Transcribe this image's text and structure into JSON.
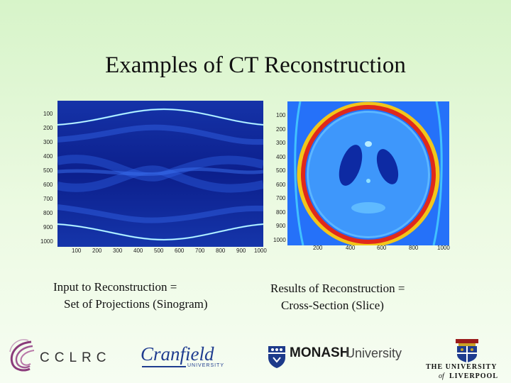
{
  "slide": {
    "title": "Examples of CT Reconstruction"
  },
  "sinogram": {
    "y_ticks": [
      "100",
      "200",
      "300",
      "400",
      "500",
      "600",
      "700",
      "800",
      "900",
      "1000"
    ],
    "x_ticks": [
      "100",
      "200",
      "300",
      "400",
      "500",
      "600",
      "700",
      "800",
      "900",
      "1000"
    ]
  },
  "slice": {
    "y_ticks": [
      "100",
      "200",
      "300",
      "400",
      "500",
      "600",
      "700",
      "800",
      "900",
      "1000"
    ],
    "x_ticks": [
      "200",
      "400",
      "600",
      "800",
      "1000"
    ]
  },
  "captions": {
    "left_line1": "Input to Reconstruction =",
    "left_line2": "Set of Projections (Sinogram)",
    "right_line1": "Results of Reconstruction =",
    "right_line2": "Cross-Section (Slice)"
  },
  "logos": {
    "cclrc": "CCLRC",
    "cranfield_name": "Cranfield",
    "cranfield_sub": "UNIVERSITY",
    "monash_bold": "MONASH",
    "monash_rest": "University",
    "liverpool_line1": "THE UNIVERSITY",
    "liverpool_of": "of",
    "liverpool_line2": "LIVERPOOL"
  },
  "colors": {
    "background": "#e4f8d8",
    "sinogram_dark": "#0a1f8a",
    "slice_blue": "#2a73ff",
    "slice_red": "#e0291b",
    "cranfield_blue": "#1f3c8f",
    "liverpool_red": "#9a1b1b"
  }
}
